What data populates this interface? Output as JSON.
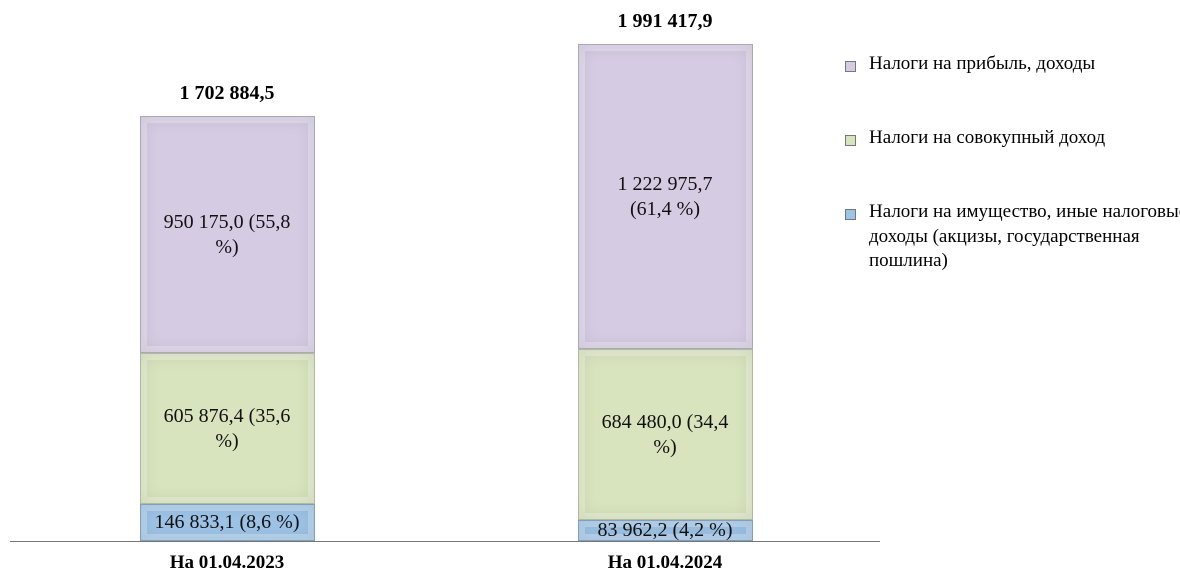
{
  "chart_data": {
    "type": "stacked-bar",
    "categories": [
      "На 01.04.2023",
      "На 01.04.2024"
    ],
    "series": [
      {
        "name": "Налоги на имущество, иные налоговые доходы (акцизы, государственная пошлина)",
        "color": "#9dc3e6",
        "values": [
          146833.1,
          83962.2
        ],
        "value_labels": [
          "146 833,1 (8,6 %)",
          "83 962,2 (4,2 %)"
        ]
      },
      {
        "name": "Налоги на совокупный доход",
        "color": "#d7e4bd",
        "values": [
          605876.4,
          684480.0
        ],
        "value_labels": [
          "605 876,4 (35,6 %)",
          "684 480,0 (34,4 %)"
        ]
      },
      {
        "name": "Налоги на прибыль, доходы",
        "color": "#d5cbe3",
        "values": [
          950175.0,
          1222975.7
        ],
        "value_labels": [
          "950 175,0 (55,8 %)",
          "1 222 975,7 (61,4 %)"
        ]
      }
    ],
    "totals": [
      1702884.5,
      1991417.9
    ],
    "total_labels": [
      "1 702 884,5",
      "1 991 417,9"
    ]
  }
}
